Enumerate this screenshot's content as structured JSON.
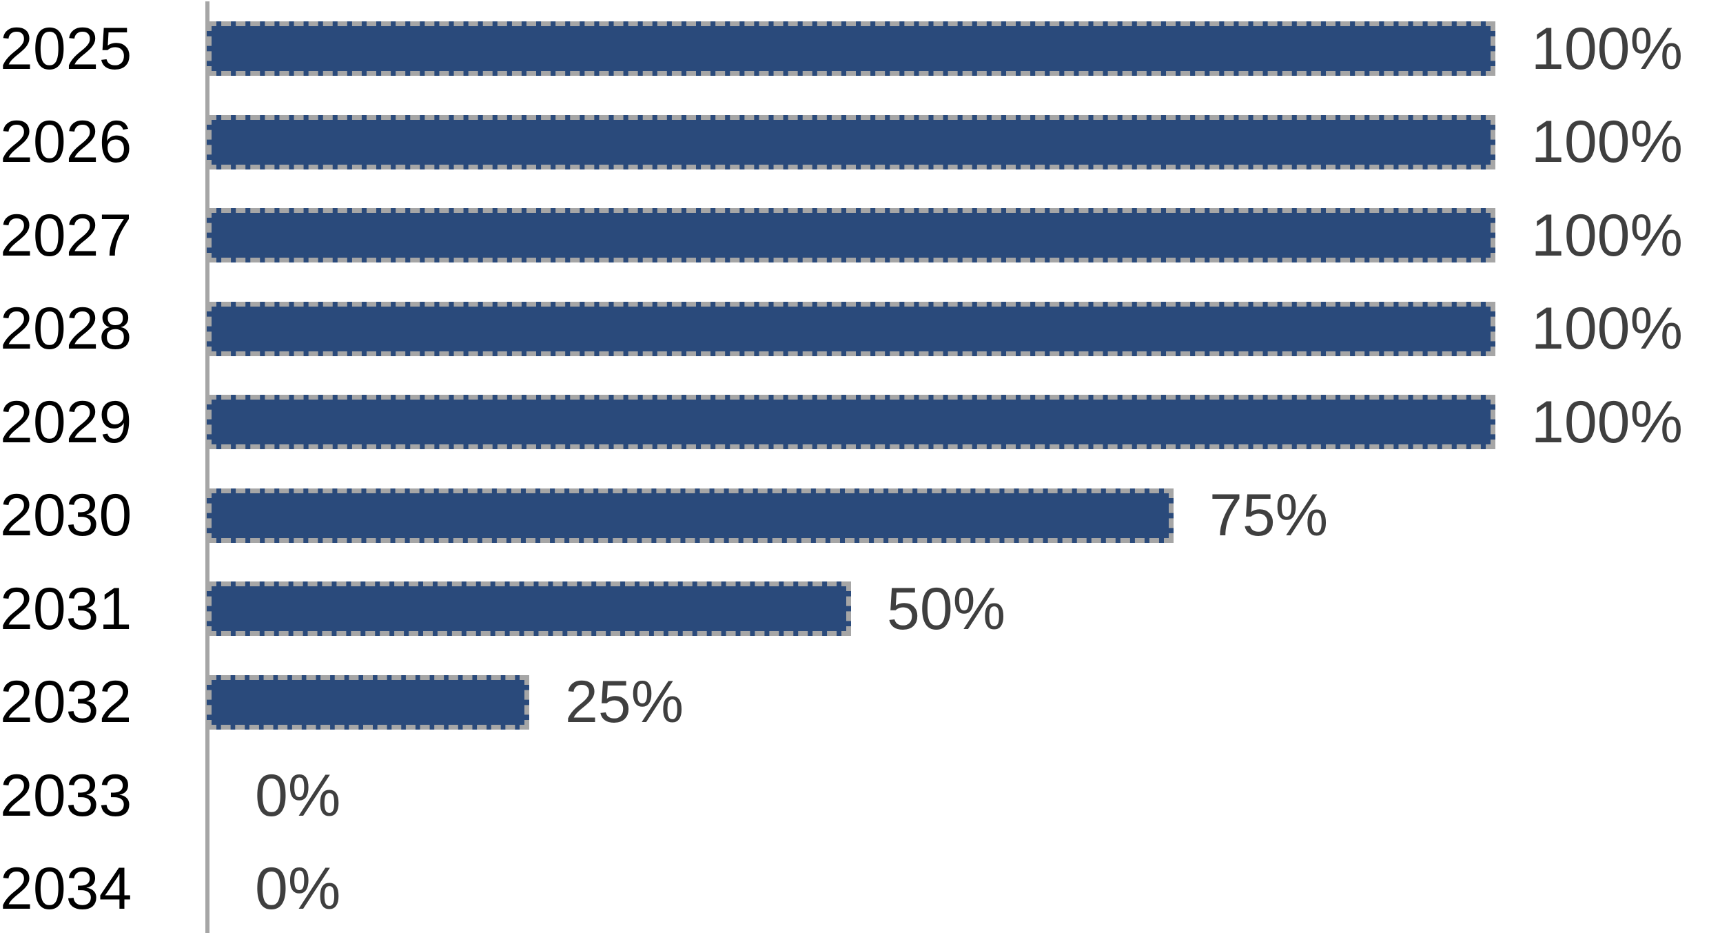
{
  "chart_data": {
    "type": "bar",
    "orientation": "horizontal",
    "title": "",
    "xlabel": "",
    "ylabel": "",
    "categories": [
      "2025",
      "2026",
      "2027",
      "2028",
      "2029",
      "2030",
      "2031",
      "2032",
      "2033",
      "2034"
    ],
    "values": [
      100,
      100,
      100,
      100,
      100,
      75,
      50,
      25,
      0,
      0
    ],
    "value_labels": [
      "100%",
      "100%",
      "100%",
      "100%",
      "100%",
      "75%",
      "50%",
      "25%",
      "0%",
      "0%"
    ],
    "xlim": [
      0,
      100
    ],
    "grid": false,
    "legend": "none",
    "bar_color": "#2a4a7b",
    "bar_border_color": "#a6a6a6",
    "axis_line_color": "#a6a6a6",
    "category_label_color": "#000000",
    "value_label_color": "#3f3f3f"
  }
}
